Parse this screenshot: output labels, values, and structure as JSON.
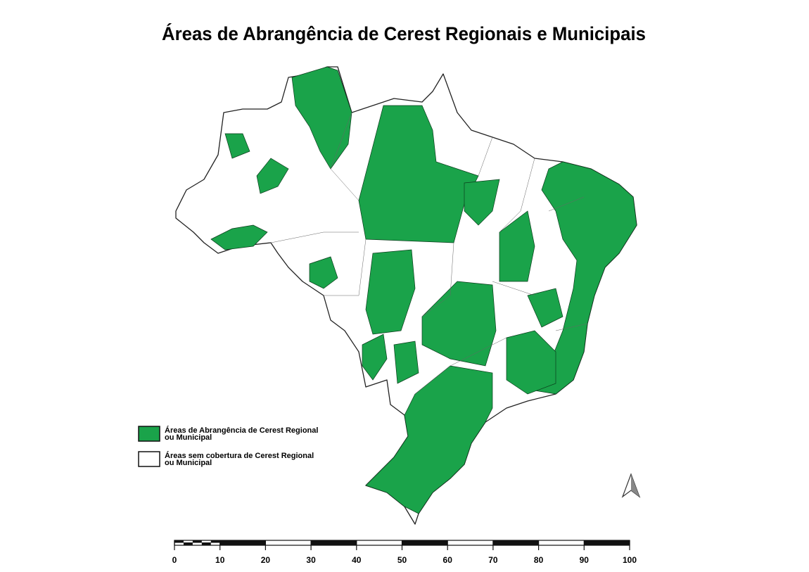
{
  "title": "Áreas de Abrangência de Cerest Regionais e Municipais",
  "legend": {
    "items": [
      {
        "lines": [
          "Áreas de Abrangência de Cerest Regional",
          "ou Municipal"
        ]
      },
      {
        "lines": [
          "Áreas sem cobertura de Cerest Regional",
          "ou Municipal"
        ]
      }
    ]
  },
  "scale_bar": {
    "labels": [
      0,
      10,
      20,
      30,
      40,
      50,
      60,
      70,
      80,
      90,
      100
    ]
  }
}
